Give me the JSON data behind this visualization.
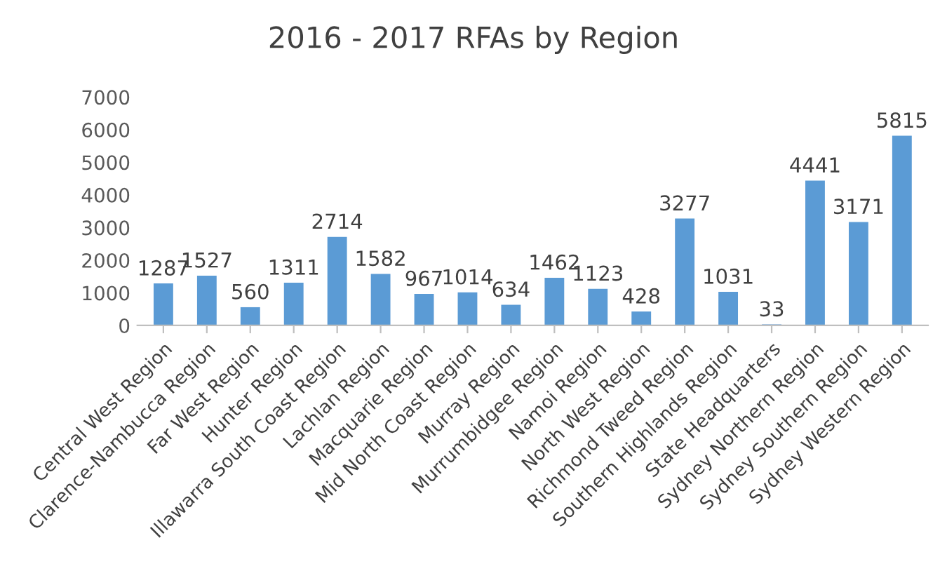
{
  "chart_data": {
    "type": "bar",
    "title": "2016 - 2017 RFAs by Region",
    "categories": [
      "Central West Region",
      "Clarence-Nambucca Region",
      "Far West Region",
      "Hunter Region",
      "Illawarra South Coast Region",
      "Lachlan Region",
      "Macquarie Region",
      "Mid North Coast Region",
      "Murray Region",
      "Murrumbidgee Region",
      "Namoi Region",
      "North West Region",
      "Richmond Tweed Region",
      "Southern Highlands Region",
      "State Headquarters",
      "Sydney Northern Region",
      "Sydney Southern Region",
      "Sydney Western Region"
    ],
    "values": [
      1287,
      1527,
      560,
      1311,
      2714,
      1582,
      967,
      1014,
      634,
      1462,
      1123,
      428,
      3277,
      1031,
      33,
      4441,
      3171,
      5815
    ],
    "color": "#5b9bd5",
    "ylim": [
      0,
      7000
    ],
    "yticks": [
      0,
      1000,
      2000,
      3000,
      4000,
      5000,
      6000,
      7000
    ],
    "grid": false,
    "data_labels": true
  }
}
